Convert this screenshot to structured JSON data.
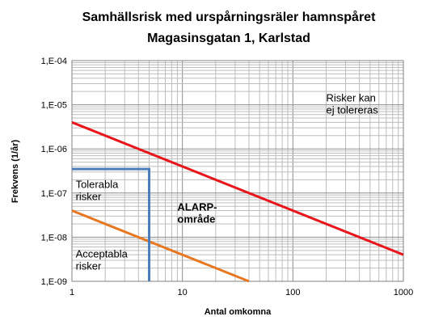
{
  "chart_data": {
    "type": "line",
    "title": [
      "Samhällsrisk med urspårningsräler hamnspåret",
      "Magasinsgatan 1, Karlstad"
    ],
    "xlabel": "Antal omkomna",
    "ylabel": "Frekvens (1/år)",
    "x_scale": "log",
    "y_scale": "log",
    "xlim": [
      1,
      1000
    ],
    "ylim": [
      1e-09,
      0.0001
    ],
    "x_ticks": [
      1,
      10,
      100,
      1000
    ],
    "x_tick_labels": [
      "1",
      "10",
      "100",
      "1000"
    ],
    "y_ticks": [
      0.0001,
      1e-05,
      1e-06,
      1e-07,
      1e-08,
      1e-09
    ],
    "y_tick_labels": [
      "1,E-04",
      "1,E-05",
      "1,E-06",
      "1,E-07",
      "1,E-08",
      "1,E-09"
    ],
    "grid": true,
    "series": [
      {
        "color": "#e8151b",
        "x": [
          1,
          1000
        ],
        "y": [
          4e-06,
          4e-09
        ]
      },
      {
        "color": "#e87722",
        "x": [
          1,
          40
        ],
        "y": [
          4e-08,
          1e-09
        ]
      },
      {
        "color": "#4a7ebb",
        "x": [
          1,
          5,
          5
        ],
        "y": [
          3.5e-07,
          3.5e-07,
          1e-09
        ]
      }
    ],
    "annotations": [
      {
        "text": [
          "Risker kan",
          "ej tolereras"
        ],
        "x": 200,
        "y": 1.2e-05,
        "bold": false
      },
      {
        "text": [
          "Tolerabla",
          "risker"
        ],
        "x": 1.08,
        "y": 1.3e-07,
        "bold": false
      },
      {
        "text": [
          "ALARP-",
          "område"
        ],
        "x": 9,
        "y": 4e-08,
        "bold": true
      },
      {
        "text": [
          "Acceptabla",
          "risker"
        ],
        "x": 1.08,
        "y": 3.5e-09,
        "bold": false
      }
    ]
  }
}
